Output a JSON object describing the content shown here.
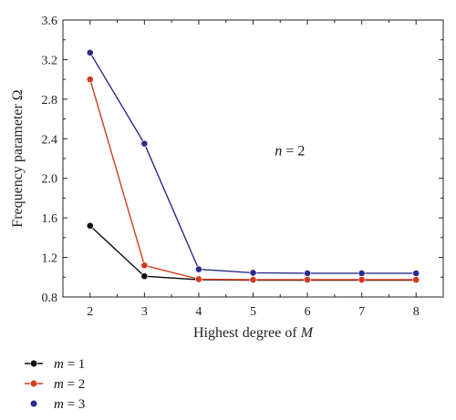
{
  "chart_data": {
    "type": "line",
    "xlabel_prefix": "Highest degree of ",
    "xlabel_var": "M",
    "ylabel": "Frequency parameter Ω",
    "x": [
      2,
      3,
      4,
      5,
      6,
      7,
      8
    ],
    "xticks": [
      "2",
      "3",
      "4",
      "5",
      "6",
      "7",
      "8"
    ],
    "xlim": [
      1.5,
      8.5
    ],
    "yticks": [
      "0.8",
      "1.2",
      "1.6",
      "2.0",
      "2.4",
      "2.8",
      "3.2",
      "3.6"
    ],
    "ytick_values": [
      0.8,
      1.2,
      1.6,
      2.0,
      2.4,
      2.8,
      3.2,
      3.6
    ],
    "ylim": [
      0.8,
      3.6
    ],
    "annotation_var": "n",
    "annotation_rest": " = 2",
    "annotation_pos": [
      5.4,
      2.23
    ],
    "legend_placement": "bottom-left, below plot",
    "series": [
      {
        "name_var": "m",
        "name_rest": " = 1",
        "color": "#111111",
        "values": [
          1.52,
          1.01,
          0.975,
          0.97,
          0.97,
          0.97,
          0.97
        ]
      },
      {
        "name_var": "m",
        "name_rest": " = 2",
        "color": "#d13a1c",
        "values": [
          3.0,
          1.12,
          0.98,
          0.975,
          0.975,
          0.975,
          0.975
        ]
      },
      {
        "name_var": "m",
        "name_rest": " = 3",
        "color": "#2a2a8c",
        "values": [
          3.27,
          2.35,
          1.08,
          1.045,
          1.04,
          1.04,
          1.04
        ]
      }
    ]
  }
}
